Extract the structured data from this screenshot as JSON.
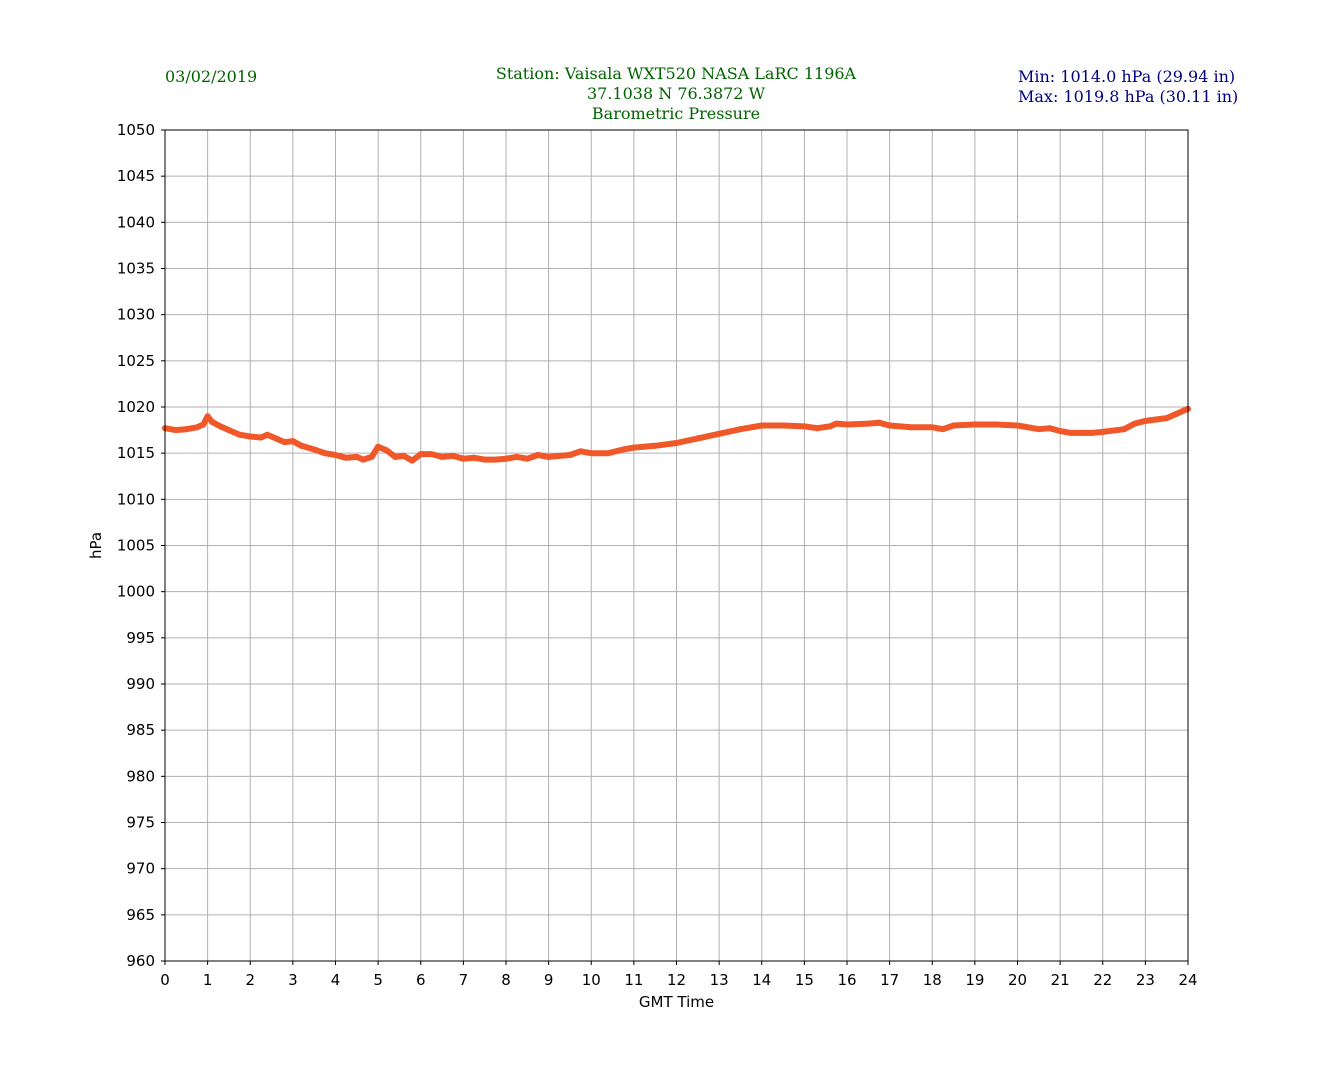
{
  "header": {
    "date": "03/02/2019",
    "station_line": "Station:  Vaisala WXT520  NASA LaRC 1196A",
    "coords_line": "37.1038 N 76.3872 W",
    "title": "Barometric Pressure",
    "min_line": "Min: 1014.0 hPa (29.94 in)",
    "max_line": "Max: 1019.8 hPa (30.11 in)"
  },
  "colors": {
    "header_green": "#006400",
    "header_navy": "#00007f",
    "series": "#f0582a",
    "grid": "#b0b0b0"
  },
  "chart_data": {
    "type": "line",
    "xlabel": "GMT Time",
    "ylabel": "hPa",
    "xlim": [
      0,
      24
    ],
    "ylim": [
      960,
      1050
    ],
    "xticks": [
      0,
      1,
      2,
      3,
      4,
      5,
      6,
      7,
      8,
      9,
      10,
      11,
      12,
      13,
      14,
      15,
      16,
      17,
      18,
      19,
      20,
      21,
      22,
      23,
      24
    ],
    "yticks": [
      960,
      965,
      970,
      975,
      980,
      985,
      990,
      995,
      1000,
      1005,
      1010,
      1015,
      1020,
      1025,
      1030,
      1035,
      1040,
      1045,
      1050
    ],
    "grid": true,
    "series": [
      {
        "x": [
          0,
          0.25,
          0.5,
          0.75,
          0.9,
          1.0,
          1.1,
          1.3,
          1.5,
          1.75,
          2.0,
          2.25,
          2.4,
          2.6,
          2.8,
          3.0,
          3.2,
          3.5,
          3.75,
          4.0,
          4.25,
          4.5,
          4.65,
          4.85,
          5.0,
          5.2,
          5.4,
          5.6,
          5.8,
          6.0,
          6.25,
          6.5,
          6.75,
          7.0,
          7.25,
          7.5,
          7.75,
          8.0,
          8.25,
          8.5,
          8.75,
          9.0,
          9.25,
          9.5,
          9.75,
          10.0,
          10.4,
          10.75,
          11.0,
          11.5,
          12.0,
          12.5,
          13.0,
          13.5,
          14.0,
          14.5,
          15.0,
          15.3,
          15.6,
          15.75,
          16.0,
          16.5,
          16.75,
          17.0,
          17.5,
          18.0,
          18.25,
          18.5,
          19.0,
          19.5,
          20.0,
          20.25,
          20.5,
          20.75,
          21.0,
          21.25,
          21.5,
          21.75,
          22.0,
          22.5,
          22.75,
          23.0,
          23.5,
          23.75,
          24.0
        ],
        "y": [
          1017.7,
          1017.5,
          1017.6,
          1017.8,
          1018.1,
          1019.0,
          1018.4,
          1017.9,
          1017.5,
          1017.0,
          1016.8,
          1016.7,
          1017.0,
          1016.6,
          1016.2,
          1016.3,
          1015.8,
          1015.4,
          1015.0,
          1014.8,
          1014.5,
          1014.6,
          1014.3,
          1014.6,
          1015.7,
          1015.3,
          1014.6,
          1014.7,
          1014.2,
          1014.9,
          1014.9,
          1014.6,
          1014.7,
          1014.4,
          1014.5,
          1014.3,
          1014.3,
          1014.4,
          1014.6,
          1014.4,
          1014.8,
          1014.6,
          1014.7,
          1014.8,
          1015.2,
          1015.0,
          1015.0,
          1015.4,
          1015.6,
          1015.8,
          1016.1,
          1016.6,
          1017.1,
          1017.6,
          1018.0,
          1018.0,
          1017.9,
          1017.7,
          1017.9,
          1018.2,
          1018.1,
          1018.2,
          1018.3,
          1018.0,
          1017.8,
          1017.8,
          1017.6,
          1018.0,
          1018.1,
          1018.1,
          1018.0,
          1017.8,
          1017.6,
          1017.7,
          1017.4,
          1017.2,
          1017.2,
          1017.2,
          1017.3,
          1017.6,
          1018.2,
          1018.5,
          1018.8,
          1019.3,
          1019.8
        ]
      }
    ]
  }
}
